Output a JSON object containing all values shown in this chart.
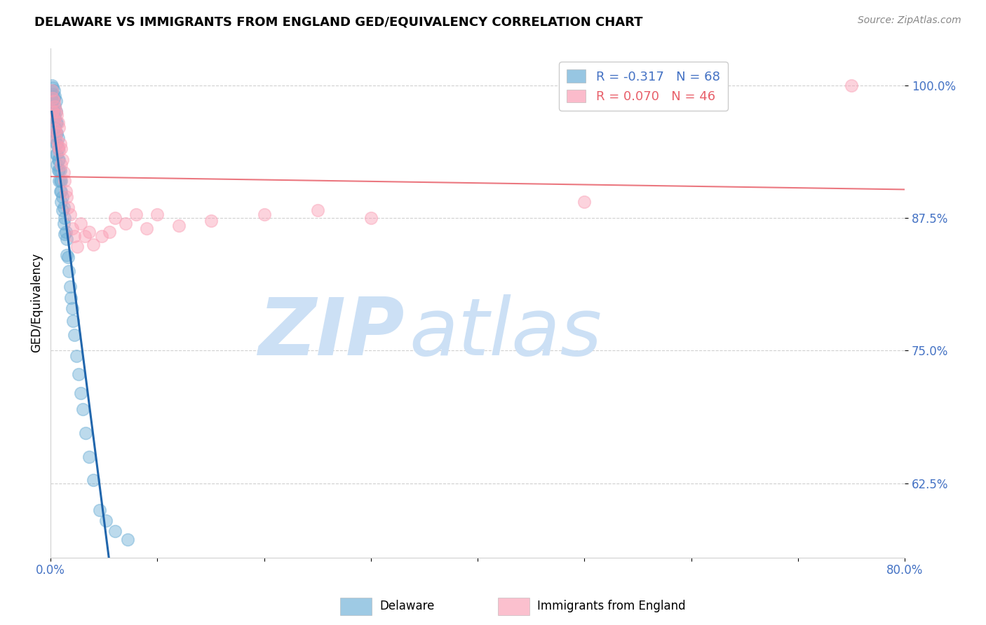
{
  "title": "DELAWARE VS IMMIGRANTS FROM ENGLAND GED/EQUIVALENCY CORRELATION CHART",
  "source": "Source: ZipAtlas.com",
  "ylabel": "GED/Equivalency",
  "ytick_labels": [
    "100.0%",
    "87.5%",
    "75.0%",
    "62.5%"
  ],
  "ytick_values": [
    1.0,
    0.875,
    0.75,
    0.625
  ],
  "xlim": [
    0.0,
    0.8
  ],
  "ylim": [
    0.555,
    1.035
  ],
  "legend_r1": "R = -0.317",
  "legend_n1": "N = 68",
  "legend_r2": "R = 0.070",
  "legend_n2": "N = 46",
  "color_delaware": "#6baed6",
  "color_england": "#fa9fb5",
  "color_trend_delaware": "#2166ac",
  "color_trend_england": "#e8606a",
  "color_trend_ext": "#c8c8c8",
  "watermark_zip": "ZIP",
  "watermark_atlas": "atlas",
  "watermark_color": "#cce0f5",
  "del_x": [
    0.001,
    0.001,
    0.001,
    0.002,
    0.002,
    0.002,
    0.002,
    0.003,
    0.003,
    0.003,
    0.003,
    0.003,
    0.004,
    0.004,
    0.004,
    0.004,
    0.004,
    0.005,
    0.005,
    0.005,
    0.005,
    0.005,
    0.005,
    0.006,
    0.006,
    0.006,
    0.006,
    0.006,
    0.007,
    0.007,
    0.007,
    0.007,
    0.008,
    0.008,
    0.008,
    0.009,
    0.009,
    0.009,
    0.01,
    0.01,
    0.01,
    0.011,
    0.011,
    0.012,
    0.012,
    0.013,
    0.013,
    0.014,
    0.015,
    0.015,
    0.016,
    0.017,
    0.018,
    0.019,
    0.02,
    0.021,
    0.022,
    0.024,
    0.026,
    0.028,
    0.03,
    0.033,
    0.036,
    0.04,
    0.046,
    0.052,
    0.06,
    0.072
  ],
  "del_y": [
    1.0,
    0.99,
    0.985,
    0.998,
    0.992,
    0.985,
    0.978,
    0.995,
    0.988,
    0.975,
    0.968,
    0.96,
    0.99,
    0.98,
    0.97,
    0.96,
    0.95,
    0.985,
    0.975,
    0.965,
    0.955,
    0.945,
    0.935,
    0.965,
    0.955,
    0.945,
    0.935,
    0.925,
    0.95,
    0.94,
    0.93,
    0.92,
    0.93,
    0.92,
    0.91,
    0.92,
    0.91,
    0.9,
    0.91,
    0.9,
    0.89,
    0.895,
    0.882,
    0.885,
    0.87,
    0.875,
    0.86,
    0.862,
    0.855,
    0.84,
    0.838,
    0.825,
    0.81,
    0.8,
    0.79,
    0.778,
    0.765,
    0.745,
    0.728,
    0.71,
    0.695,
    0.672,
    0.65,
    0.628,
    0.6,
    0.59,
    0.58,
    0.572
  ],
  "eng_x": [
    0.001,
    0.002,
    0.002,
    0.003,
    0.003,
    0.004,
    0.004,
    0.005,
    0.005,
    0.006,
    0.006,
    0.007,
    0.007,
    0.008,
    0.008,
    0.009,
    0.01,
    0.01,
    0.011,
    0.012,
    0.013,
    0.014,
    0.015,
    0.016,
    0.018,
    0.02,
    0.022,
    0.025,
    0.028,
    0.032,
    0.036,
    0.04,
    0.048,
    0.055,
    0.06,
    0.07,
    0.08,
    0.09,
    0.1,
    0.12,
    0.15,
    0.2,
    0.25,
    0.3,
    0.5,
    0.75
  ],
  "eng_y": [
    0.995,
    0.988,
    0.975,
    0.985,
    0.968,
    0.98,
    0.958,
    0.975,
    0.955,
    0.972,
    0.948,
    0.965,
    0.942,
    0.96,
    0.938,
    0.945,
    0.94,
    0.925,
    0.93,
    0.918,
    0.91,
    0.9,
    0.895,
    0.885,
    0.878,
    0.865,
    0.858,
    0.848,
    0.87,
    0.858,
    0.862,
    0.85,
    0.858,
    0.862,
    0.875,
    0.87,
    0.878,
    0.865,
    0.878,
    0.868,
    0.872,
    0.878,
    0.882,
    0.875,
    0.89,
    1.0
  ]
}
